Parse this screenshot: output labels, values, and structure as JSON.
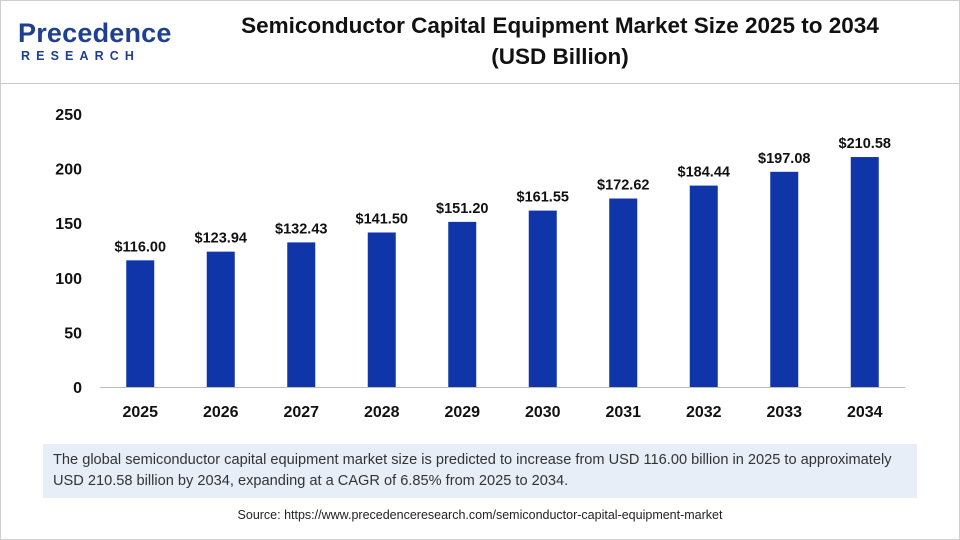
{
  "brand": {
    "name": "Precedence",
    "sub": "RESEARCH",
    "color": "#1f3f8f"
  },
  "title_line1": "Semiconductor Capital Equipment Market Size 2025 to 2034",
  "title_line2": "(USD Billion)",
  "note": "The global semiconductor capital equipment market size is predicted to increase from USD 116.00 billion in 2025 to approximately USD 210.58 billion by 2034, expanding at a CAGR of 6.85% from 2025 to 2034.",
  "source": "Source: https://www.precedenceresearch.com/semiconductor-capital-equipment-market",
  "chart_data": {
    "type": "bar",
    "title": "Semiconductor Capital Equipment Market Size 2025 to 2034 (USD Billion)",
    "xlabel": "",
    "ylabel": "",
    "categories": [
      "2025",
      "2026",
      "2027",
      "2028",
      "2029",
      "2030",
      "2031",
      "2032",
      "2033",
      "2034"
    ],
    "values": [
      116.0,
      123.94,
      132.43,
      141.5,
      151.2,
      161.55,
      172.62,
      184.44,
      197.08,
      210.58
    ],
    "data_labels": [
      "$116.00",
      "$123.94",
      "$132.43",
      "$141.50",
      "$151.20",
      "$161.55",
      "$172.62",
      "$184.44",
      "$197.08",
      "$210.58"
    ],
    "yticks": [
      0,
      50,
      100,
      150,
      200,
      250
    ],
    "ylim": [
      0,
      250
    ],
    "grid": false,
    "legend": "none",
    "bar_color": "#0f35a8"
  }
}
